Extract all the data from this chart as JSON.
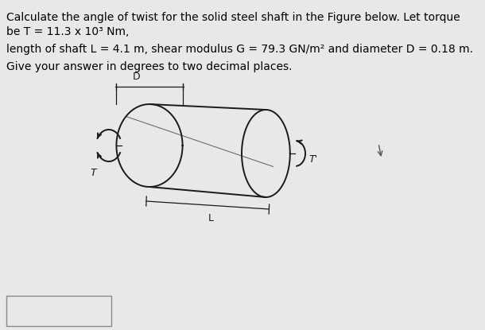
{
  "line1": "Calculate the angle of twist for the solid steel shaft in the Figure below. Let torque",
  "line2": "be T = 11.3 x 10³ Nm,",
  "line3": "length of shaft L = 4.1 m, shear modulus G = 79.3 GN/m² and diameter D = 0.18 m.",
  "line4": "Give your answer in degrees to two decimal places.",
  "bg_color": "#e8e8e8",
  "text_color": "#000000",
  "font_size": 10.0
}
